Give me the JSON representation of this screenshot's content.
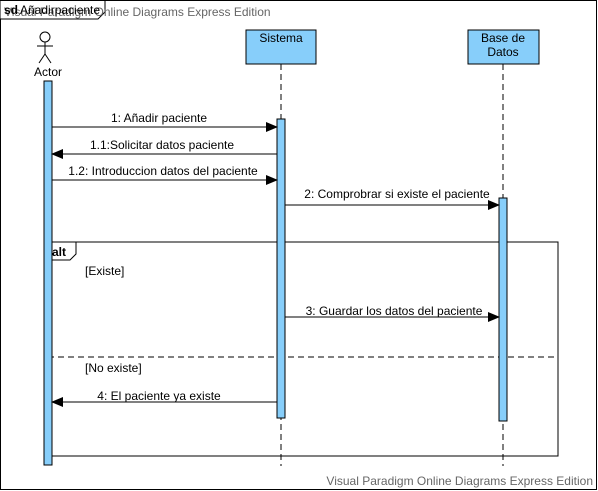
{
  "frame": {
    "keyword": "sd",
    "name": "Añadirpaciente",
    "watermark_top": "Visual Paradigm Online Diagrams Express Edition",
    "watermark_bottom": "Visual Paradigm Online Diagrams Express Edition"
  },
  "participants": {
    "actor": {
      "label": "Actor"
    },
    "sistema": {
      "label": "Sistema"
    },
    "base_datos": {
      "line1": "Base de",
      "line2": "Datos"
    }
  },
  "messages": {
    "m1": "1: Añadir paciente",
    "m1_1": "1.1:Solicitar datos paciente",
    "m1_2": "1.2: Introduccion datos del paciente",
    "m2": "2: Comprobrar si existe el paciente",
    "m3": "3: Guardar los datos del paciente",
    "m4": "4: El paciente ya existe"
  },
  "fragment": {
    "operator": "alt",
    "guard1": "[Existe]",
    "guard2": "[No existe]"
  },
  "colors": {
    "lifeline_box": "#87cefa",
    "activation": "#87cefa",
    "border": "#000000",
    "watermark": "#666666"
  }
}
